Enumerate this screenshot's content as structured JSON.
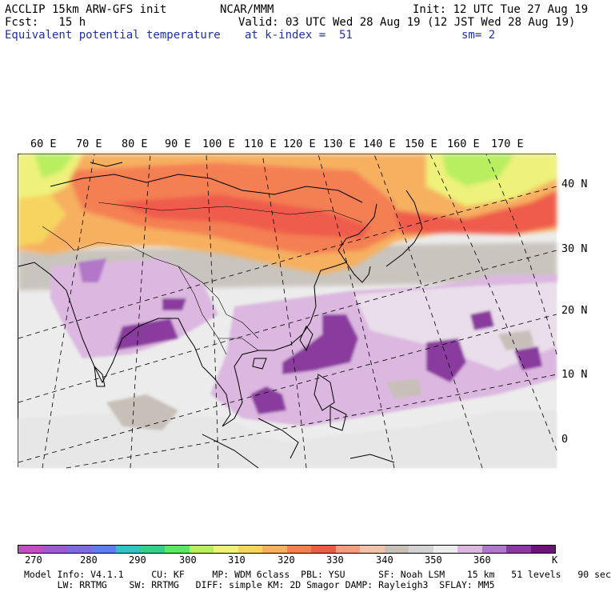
{
  "header": {
    "line1_left": "ACCLIP 15km ARW-GFS init",
    "line1_center": "NCAR/MMM",
    "line1_right": "Init: 12 UTC Tue 27 Aug 19",
    "line2_left": "Fcst:   15 h",
    "line2_right": "Valid: 03 UTC Wed 28 Aug 19 (12 JST Wed 28 Aug 19)",
    "line3_left": "Equivalent potential temperature",
    "line3_center": "at k-index =  51",
    "line3_right": "sm= 2"
  },
  "map": {
    "lon_labels": [
      "60 E",
      "70 E",
      "80 E",
      "90 E",
      "100 E",
      "110 E",
      "120 E",
      "130 E",
      "140 E",
      "150 E",
      "160 E",
      "170 E"
    ],
    "lat_labels": [
      "40 N",
      "30 N",
      "20 N",
      "10 N",
      "0"
    ]
  },
  "colorbar": {
    "unit": "K",
    "labels": [
      "270",
      "280",
      "290",
      "300",
      "310",
      "320",
      "330",
      "340",
      "350",
      "360"
    ],
    "colors": [
      "#c24fc0",
      "#a05ad0",
      "#7f6be0",
      "#5c7ff0",
      "#2fc3c3",
      "#33d08a",
      "#5be66a",
      "#b8ee60",
      "#eef27a",
      "#f6d45e",
      "#f6b061",
      "#f47f52",
      "#ef5b4b",
      "#f39c82",
      "#f2c3a7",
      "#c8c0b8",
      "#d3d3d3",
      "#eeeeee",
      "#dcb8e0",
      "#b277c8",
      "#8a3a9e",
      "#6b1677"
    ]
  },
  "footer": {
    "line1": "Model Info: V4.1.1     CU: KF     MP: WDM 6class  PBL: YSU      SF: Noah LSM    15 km   51 levels   90 sec",
    "line2": "      LW: RRTMG    SW: RRTMG   DIFF: simple KM: 2D Smagor DAMP: Rayleigh3  SFLAY: MM5"
  }
}
